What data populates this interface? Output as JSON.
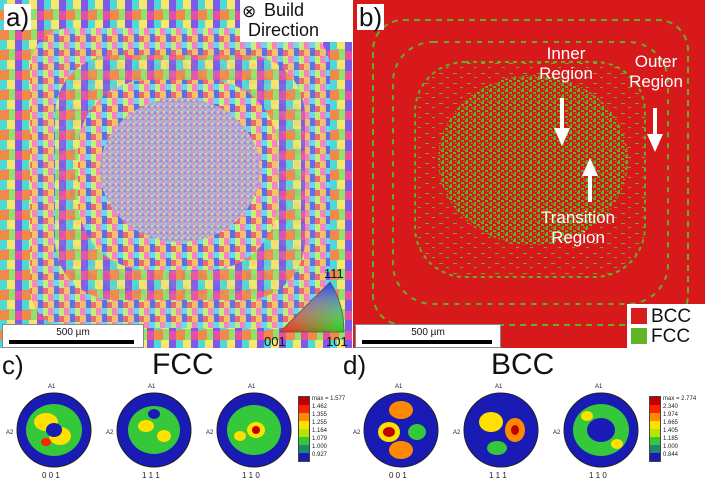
{
  "panels": {
    "a": {
      "label": "a)",
      "build_symbol": "⊗",
      "build_line1": "Build",
      "build_line2": "Direction",
      "scale": "500 µm",
      "ipf": {
        "top": "111",
        "left": "001",
        "right": "101"
      }
    },
    "b": {
      "label": "b)",
      "scale": "500 µm",
      "annotations": {
        "inner_1": "Inner",
        "inner_2": "Region",
        "outer_1": "Outer",
        "outer_2": "Region",
        "trans_1": "Transition",
        "trans_2": "Region"
      },
      "legend": [
        {
          "label": "BCC",
          "color": "#d91c1c"
        },
        {
          "label": "FCC",
          "color": "#62b528"
        }
      ]
    },
    "c": {
      "label": "c)",
      "title": "FCC",
      "poles": [
        "0 0 1",
        "1 1 1",
        "1 1 0"
      ],
      "axis_a1": "A1",
      "axis_a2": "A2",
      "colorbar": [
        "max = 1.577",
        "1.462",
        "1.355",
        "1.255",
        "1.164",
        "1.079",
        "1.000",
        "0.927"
      ]
    },
    "d": {
      "label": "d)",
      "title": "BCC",
      "poles": [
        "0 0 1",
        "1 1 1",
        "1 1 0"
      ],
      "axis_a1": "A1",
      "axis_a2": "A2",
      "colorbar": [
        "max = 2.774",
        "2.340",
        "1.974",
        "1.665",
        "1.405",
        "1.185",
        "1.000",
        "0.844"
      ]
    }
  },
  "colors": {
    "bcc_red": "#d7191c",
    "fcc_green": "#5fb126",
    "pf_colorbar": [
      "#c00000",
      "#ff2000",
      "#ff8a00",
      "#ffe000",
      "#b6e600",
      "#35c83a",
      "#1d8b6b",
      "#1a1ab4"
    ]
  }
}
